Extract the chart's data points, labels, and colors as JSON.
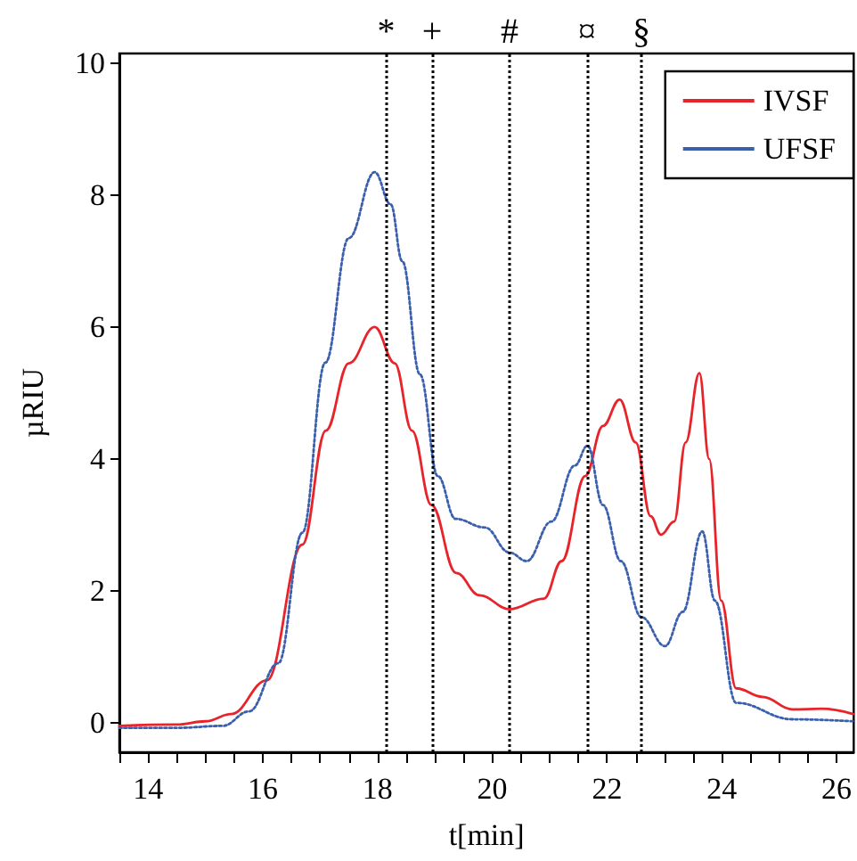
{
  "chart_data": {
    "type": "line",
    "xlabel": "t[min]",
    "ylabel": "µRIU",
    "xlim": [
      13.5,
      26.3
    ],
    "ylim": [
      -0.45,
      10.15
    ],
    "xticks": [
      {
        "value": 13.5,
        "label": null
      },
      14,
      {
        "value": 14.5,
        "label": null
      },
      {
        "value": 15,
        "label": null
      },
      {
        "value": 15.5,
        "label": null
      },
      16,
      {
        "value": 16.5,
        "label": null
      },
      {
        "value": 17,
        "label": null
      },
      {
        "value": 17.5,
        "label": null
      },
      18,
      {
        "value": 18.5,
        "label": null
      },
      {
        "value": 19,
        "label": null
      },
      {
        "value": 19.5,
        "label": null
      },
      20,
      {
        "value": 20.5,
        "label": null
      },
      {
        "value": 21,
        "label": null
      },
      {
        "value": 21.5,
        "label": null
      },
      22,
      {
        "value": 22.5,
        "label": null
      },
      {
        "value": 23,
        "label": null
      },
      {
        "value": 23.5,
        "label": null
      },
      24,
      {
        "value": 24.5,
        "label": null
      },
      {
        "value": 25,
        "label": null
      },
      {
        "value": 25.5,
        "label": null
      },
      26
    ],
    "yticks": [
      0,
      2,
      4,
      6,
      8,
      10
    ],
    "grid": false,
    "legend": "top right",
    "marker": "none",
    "series": [
      {
        "name": "IVSF",
        "color": "#e8242b",
        "line_style": "solid",
        "x": [
          13.5,
          14.5,
          15,
          15.45,
          16.07,
          16.69,
          17.1,
          17.5,
          17.95,
          18.3,
          18.6,
          18.94,
          19.37,
          19.78,
          20.3,
          20.9,
          21.21,
          21.62,
          21.93,
          22.22,
          22.5,
          22.76,
          22.94,
          23.17,
          23.37,
          23.61,
          23.78,
          23.99,
          24.25,
          24.71,
          25.23,
          25.74,
          26.29
        ],
        "values": [
          -0.05,
          -0.03,
          0.02,
          0.13,
          0.64,
          2.7,
          4.43,
          5.45,
          6.0,
          5.45,
          4.43,
          3.3,
          2.27,
          1.93,
          1.72,
          1.88,
          2.45,
          3.74,
          4.5,
          4.9,
          4.25,
          3.13,
          2.85,
          3.05,
          4.25,
          5.3,
          4.0,
          1.85,
          0.52,
          0.39,
          0.2,
          0.21,
          0.13
        ]
      },
      {
        "name": "UFSF",
        "color": "#3a5fad",
        "line_style": "dotted",
        "x": [
          13.5,
          14.5,
          15.3,
          15.76,
          16.27,
          16.69,
          17.09,
          17.5,
          17.95,
          18.23,
          18.43,
          18.74,
          19.05,
          19.36,
          19.87,
          20.3,
          20.6,
          21.03,
          21.44,
          21.66,
          21.93,
          22.24,
          22.6,
          23.01,
          23.32,
          23.66,
          23.88,
          24.25,
          25.23,
          26.29
        ],
        "values": [
          -0.08,
          -0.08,
          -0.05,
          0.17,
          0.9,
          2.88,
          5.46,
          7.35,
          8.35,
          7.86,
          7.0,
          5.28,
          3.74,
          3.09,
          2.96,
          2.58,
          2.45,
          3.05,
          3.9,
          4.2,
          3.3,
          2.45,
          1.6,
          1.16,
          1.68,
          2.9,
          1.85,
          0.3,
          0.05,
          0.02
        ]
      }
    ],
    "ref_lines": [
      {
        "axis": "x",
        "value": 18.15,
        "label": "*",
        "line_style": "dotted",
        "color": "#000000"
      },
      {
        "axis": "x",
        "value": 18.95,
        "label": "+",
        "line_style": "dotted",
        "color": "#000000"
      },
      {
        "axis": "x",
        "value": 20.3,
        "label": "#",
        "line_style": "dotted",
        "color": "#000000"
      },
      {
        "axis": "x",
        "value": 21.65,
        "label": "¤",
        "line_style": "dotted",
        "color": "#000000"
      },
      {
        "axis": "x",
        "value": 22.6,
        "label": "§",
        "line_style": "dotted",
        "color": "#000000"
      }
    ]
  }
}
